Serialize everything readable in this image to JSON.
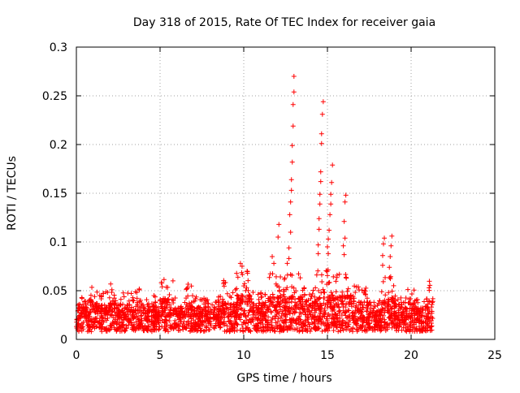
{
  "chart_data": {
    "type": "scatter",
    "title": "Day 318 of 2015, Rate Of TEC Index for receiver gaia",
    "xlabel": "GPS time / hours",
    "ylabel": "ROTI / TECUs",
    "xlim": [
      0,
      25
    ],
    "ylim": [
      0,
      0.3
    ],
    "x_ticks": [
      "0",
      "5",
      "10",
      "15",
      "20",
      "25"
    ],
    "y_ticks": [
      "0",
      "0.05",
      "0.1",
      "0.15",
      "0.2",
      "0.25",
      "0.3"
    ],
    "grid": true,
    "marker": "+",
    "color": "#ff0000",
    "x_extent": [
      0,
      21.3
    ],
    "spike_points": [
      {
        "x": 13.0,
        "y": 0.27
      },
      {
        "x": 13.0,
        "y": 0.254
      },
      {
        "x": 12.95,
        "y": 0.241
      },
      {
        "x": 12.95,
        "y": 0.219
      },
      {
        "x": 12.9,
        "y": 0.199
      },
      {
        "x": 12.9,
        "y": 0.182
      },
      {
        "x": 12.85,
        "y": 0.164
      },
      {
        "x": 12.85,
        "y": 0.153
      },
      {
        "x": 12.8,
        "y": 0.141
      },
      {
        "x": 12.75,
        "y": 0.128
      },
      {
        "x": 12.8,
        "y": 0.11
      },
      {
        "x": 12.7,
        "y": 0.094
      },
      {
        "x": 12.7,
        "y": 0.083
      },
      {
        "x": 12.6,
        "y": 0.078
      },
      {
        "x": 14.75,
        "y": 0.244
      },
      {
        "x": 14.7,
        "y": 0.231
      },
      {
        "x": 14.65,
        "y": 0.211
      },
      {
        "x": 14.65,
        "y": 0.201
      },
      {
        "x": 14.6,
        "y": 0.172
      },
      {
        "x": 14.6,
        "y": 0.162
      },
      {
        "x": 14.55,
        "y": 0.149
      },
      {
        "x": 14.55,
        "y": 0.139
      },
      {
        "x": 14.5,
        "y": 0.124
      },
      {
        "x": 14.5,
        "y": 0.113
      },
      {
        "x": 14.45,
        "y": 0.097
      },
      {
        "x": 14.45,
        "y": 0.088
      },
      {
        "x": 15.3,
        "y": 0.179
      },
      {
        "x": 15.25,
        "y": 0.161
      },
      {
        "x": 15.2,
        "y": 0.149
      },
      {
        "x": 15.2,
        "y": 0.139
      },
      {
        "x": 15.15,
        "y": 0.128
      },
      {
        "x": 15.1,
        "y": 0.112
      },
      {
        "x": 15.05,
        "y": 0.103
      },
      {
        "x": 15.0,
        "y": 0.095
      },
      {
        "x": 15.05,
        "y": 0.088
      },
      {
        "x": 16.1,
        "y": 0.148
      },
      {
        "x": 16.05,
        "y": 0.141
      },
      {
        "x": 16.0,
        "y": 0.121
      },
      {
        "x": 16.05,
        "y": 0.104
      },
      {
        "x": 15.95,
        "y": 0.096
      },
      {
        "x": 16.0,
        "y": 0.087
      },
      {
        "x": 12.1,
        "y": 0.118
      },
      {
        "x": 12.05,
        "y": 0.105
      },
      {
        "x": 11.7,
        "y": 0.085
      },
      {
        "x": 11.8,
        "y": 0.078
      },
      {
        "x": 18.4,
        "y": 0.104
      },
      {
        "x": 18.35,
        "y": 0.098
      },
      {
        "x": 18.3,
        "y": 0.086
      },
      {
        "x": 18.3,
        "y": 0.076
      },
      {
        "x": 18.85,
        "y": 0.106
      },
      {
        "x": 18.8,
        "y": 0.096
      },
      {
        "x": 18.75,
        "y": 0.085
      },
      {
        "x": 18.7,
        "y": 0.074
      },
      {
        "x": 9.8,
        "y": 0.078
      },
      {
        "x": 9.9,
        "y": 0.075
      },
      {
        "x": 10.2,
        "y": 0.07
      }
    ],
    "background_bands": [
      {
        "x_from": 0.0,
        "x_to": 0.8,
        "typical": 0.024,
        "peak": 0.045
      },
      {
        "x_from": 0.8,
        "x_to": 1.0,
        "typical": 0.03,
        "peak": 0.06
      },
      {
        "x_from": 1.0,
        "x_to": 2.0,
        "typical": 0.025,
        "peak": 0.05
      },
      {
        "x_from": 2.0,
        "x_to": 2.4,
        "typical": 0.028,
        "peak": 0.06
      },
      {
        "x_from": 2.4,
        "x_to": 3.4,
        "typical": 0.024,
        "peak": 0.05
      },
      {
        "x_from": 3.4,
        "x_to": 3.9,
        "typical": 0.027,
        "peak": 0.055
      },
      {
        "x_from": 3.9,
        "x_to": 5.0,
        "typical": 0.022,
        "peak": 0.045
      },
      {
        "x_from": 5.0,
        "x_to": 5.8,
        "typical": 0.03,
        "peak": 0.065
      },
      {
        "x_from": 5.8,
        "x_to": 6.4,
        "typical": 0.022,
        "peak": 0.045
      },
      {
        "x_from": 6.4,
        "x_to": 6.9,
        "typical": 0.026,
        "peak": 0.058
      },
      {
        "x_from": 6.9,
        "x_to": 8.5,
        "typical": 0.022,
        "peak": 0.045
      },
      {
        "x_from": 8.5,
        "x_to": 9.0,
        "typical": 0.026,
        "peak": 0.062
      },
      {
        "x_from": 9.0,
        "x_to": 9.5,
        "typical": 0.024,
        "peak": 0.048
      },
      {
        "x_from": 9.5,
        "x_to": 10.5,
        "typical": 0.035,
        "peak": 0.07
      },
      {
        "x_from": 10.5,
        "x_to": 11.5,
        "typical": 0.026,
        "peak": 0.05
      },
      {
        "x_from": 11.5,
        "x_to": 13.5,
        "typical": 0.032,
        "peak": 0.068
      },
      {
        "x_from": 13.5,
        "x_to": 14.3,
        "typical": 0.028,
        "peak": 0.055
      },
      {
        "x_from": 14.3,
        "x_to": 16.5,
        "typical": 0.034,
        "peak": 0.072
      },
      {
        "x_from": 16.5,
        "x_to": 17.6,
        "typical": 0.027,
        "peak": 0.055
      },
      {
        "x_from": 17.6,
        "x_to": 18.2,
        "typical": 0.022,
        "peak": 0.04
      },
      {
        "x_from": 18.2,
        "x_to": 19.0,
        "typical": 0.03,
        "peak": 0.065
      },
      {
        "x_from": 19.0,
        "x_to": 19.8,
        "typical": 0.022,
        "peak": 0.045
      },
      {
        "x_from": 19.8,
        "x_to": 20.2,
        "typical": 0.026,
        "peak": 0.055
      },
      {
        "x_from": 20.2,
        "x_to": 21.0,
        "typical": 0.022,
        "peak": 0.042
      },
      {
        "x_from": 21.0,
        "x_to": 21.3,
        "typical": 0.03,
        "peak": 0.067
      }
    ]
  }
}
